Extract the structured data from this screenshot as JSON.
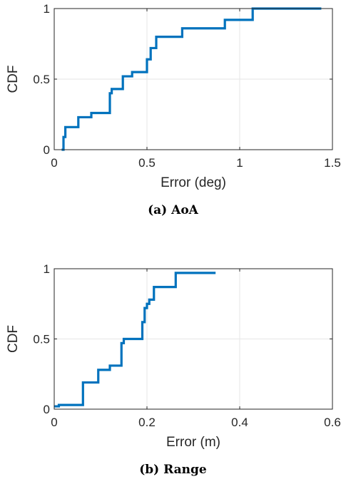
{
  "chart_data": [
    {
      "type": "line",
      "step": "post",
      "caption": "(a) AoA",
      "xlabel": "Error (deg)",
      "ylabel": "CDF",
      "xlim": [
        0,
        1.5
      ],
      "ylim": [
        0,
        1
      ],
      "xticks": [
        "0",
        "0.5",
        "1",
        "1.5"
      ],
      "yticks": [
        "0",
        "0.5",
        "1"
      ],
      "grid": true,
      "color": "#0072BD",
      "series": [
        {
          "x": [
            0.04,
            0.05,
            0.06,
            0.13,
            0.2,
            0.3,
            0.31,
            0.37,
            0.42,
            0.5,
            0.52,
            0.55,
            0.69,
            0.92,
            1.07,
            1.44
          ],
          "y": [
            0.0,
            0.09,
            0.16,
            0.23,
            0.26,
            0.4,
            0.43,
            0.52,
            0.55,
            0.64,
            0.72,
            0.8,
            0.86,
            0.92,
            1.0,
            1.0
          ]
        }
      ]
    },
    {
      "type": "line",
      "step": "post",
      "caption": "(b) Range",
      "xlabel": "Error (m)",
      "ylabel": "CDF",
      "xlim": [
        0,
        0.6
      ],
      "ylim": [
        0,
        1
      ],
      "xticks": [
        "0",
        "0.2",
        "0.4",
        "0.6"
      ],
      "yticks": [
        "0",
        "0.5",
        "1"
      ],
      "grid": true,
      "color": "#0072BD",
      "series": [
        {
          "x": [
            0.0,
            0.01,
            0.062,
            0.095,
            0.12,
            0.145,
            0.15,
            0.19,
            0.195,
            0.2,
            0.205,
            0.215,
            0.262,
            0.348
          ],
          "y": [
            0.02,
            0.03,
            0.19,
            0.28,
            0.31,
            0.47,
            0.5,
            0.62,
            0.72,
            0.75,
            0.78,
            0.87,
            0.97,
            0.97
          ]
        }
      ]
    }
  ]
}
